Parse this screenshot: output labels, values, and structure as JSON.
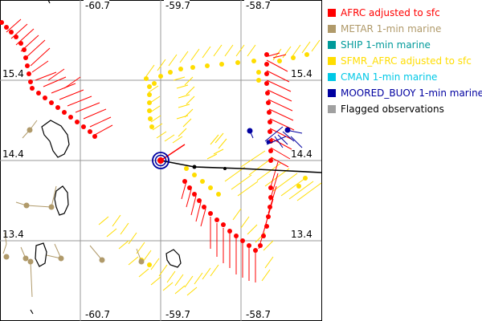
{
  "map": {
    "lon_ticks_top": [
      "-60.7",
      "-59.7",
      "-58.7"
    ],
    "lon_ticks_bottom": [
      "-60.7",
      "-59.7",
      "-58.7"
    ],
    "lat_ticks_left": [
      "15.4",
      "14.4",
      "13.4"
    ],
    "lat_ticks_right": [
      "15.4",
      "14.4",
      "13.4"
    ]
  },
  "legend": {
    "items": [
      {
        "label": "AFRC adjusted to sfc",
        "color": "#ff0000"
      },
      {
        "label": "METAR 1-min marine",
        "color": "#b09a6a"
      },
      {
        "label": "SHIP 1-min marine",
        "color": "#009a9a"
      },
      {
        "label": "SFMR_AFRC adjusted to sfc",
        "color": "#ffdd00"
      },
      {
        "label": "CMAN 1-min marine",
        "color": "#00c8e6"
      },
      {
        "label": "MOORED_BUOY 1-min marine",
        "color": "#0000a0"
      },
      {
        "label": "Flagged observations",
        "color": "#a0a0a0"
      }
    ]
  }
}
